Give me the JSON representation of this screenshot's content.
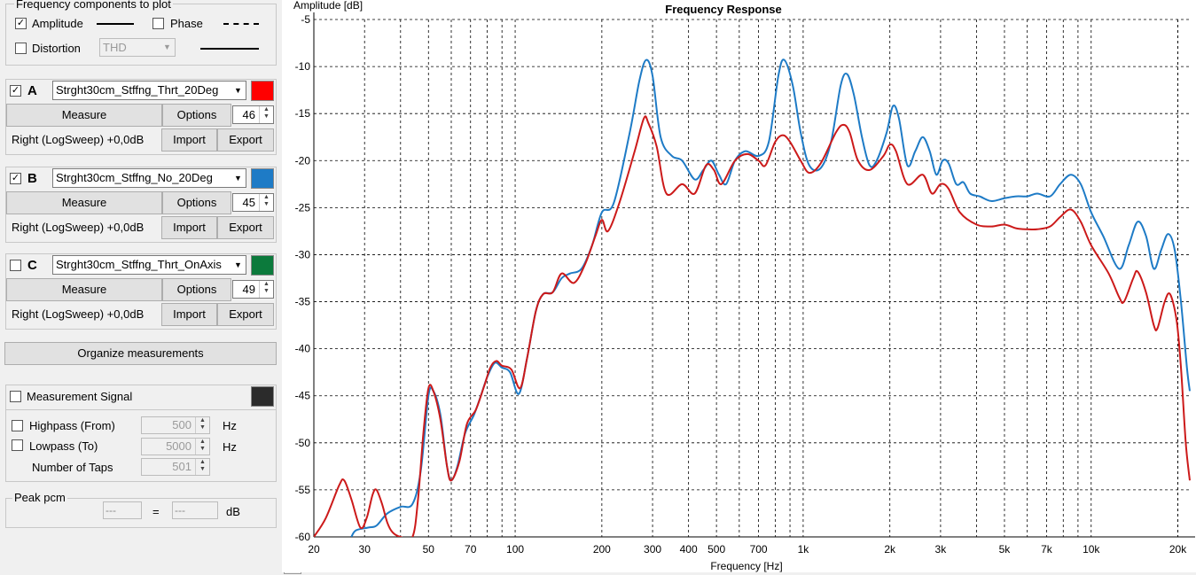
{
  "freq_components": {
    "title": "Frequency components to plot",
    "amplitude_label": "Amplitude",
    "amplitude_checked": true,
    "phase_label": "Phase",
    "phase_checked": false,
    "distortion_label": "Distortion",
    "distortion_checked": false,
    "distortion_select": "THD"
  },
  "measurements": [
    {
      "letter": "A",
      "checked": true,
      "name": "Strght30cm_Stffng_Thrt_20Deg",
      "color": "#ff0000",
      "measure_label": "Measure",
      "options_label": "Options",
      "number": "46",
      "info": "Right (LogSweep) +0,0dB",
      "import_label": "Import",
      "export_label": "Export"
    },
    {
      "letter": "B",
      "checked": true,
      "name": "Strght30cm_Stffng_No_20Deg",
      "color": "#1e7bc6",
      "measure_label": "Measure",
      "options_label": "Options",
      "number": "45",
      "info": "Right (LogSweep) +0,0dB",
      "import_label": "Import",
      "export_label": "Export"
    },
    {
      "letter": "C",
      "checked": false,
      "name": "Strght30cm_Stffng_Thrt_OnAxis",
      "color": "#0c7a3c",
      "measure_label": "Measure",
      "options_label": "Options",
      "number": "49",
      "info": "Right (LogSweep) +0,0dB",
      "import_label": "Import",
      "export_label": "Export"
    }
  ],
  "organize_label": "Organize measurements",
  "signal": {
    "label": "Measurement Signal",
    "checked": false,
    "color": "#2b2b2b",
    "highpass_label": "Highpass (From)",
    "highpass_value": "500",
    "lowpass_label": "Lowpass (To)",
    "lowpass_value": "5000",
    "hz": "Hz",
    "taps_label": "Number of Taps",
    "taps_value": "501"
  },
  "peak": {
    "title": "Peak pcm",
    "value1": "---",
    "equals": "=",
    "value2": "---",
    "unit": "dB"
  },
  "chart_data": {
    "type": "line",
    "title": "Frequency Response",
    "xlabel": "Frequency [Hz]",
    "ylabel": "Amplitude [dB]",
    "xscale": "log",
    "xlim": [
      20,
      22000
    ],
    "ylim": [
      -60,
      -5
    ],
    "yticks": [
      -5,
      -10,
      -15,
      -20,
      -25,
      -30,
      -35,
      -40,
      -45,
      -50,
      -55,
      -60
    ],
    "xtick_labels": [
      {
        "v": 20,
        "t": "20"
      },
      {
        "v": 30,
        "t": "30"
      },
      {
        "v": 50,
        "t": "50"
      },
      {
        "v": 70,
        "t": "70"
      },
      {
        "v": 100,
        "t": "100"
      },
      {
        "v": 200,
        "t": "200"
      },
      {
        "v": 300,
        "t": "300"
      },
      {
        "v": 400,
        "t": "400"
      },
      {
        "v": 500,
        "t": "500"
      },
      {
        "v": 700,
        "t": "700"
      },
      {
        "v": 1000,
        "t": "1k"
      },
      {
        "v": 2000,
        "t": "2k"
      },
      {
        "v": 3000,
        "t": "3k"
      },
      {
        "v": 5000,
        "t": "5k"
      },
      {
        "v": 7000,
        "t": "7k"
      },
      {
        "v": 10000,
        "t": "10k"
      },
      {
        "v": 20000,
        "t": "20k"
      }
    ],
    "grid": true,
    "series": [
      {
        "color": "#1e7bc6",
        "points": [
          [
            27,
            -60
          ],
          [
            28,
            -59.3
          ],
          [
            31,
            -59
          ],
          [
            33,
            -58.8
          ],
          [
            36,
            -57.5
          ],
          [
            40,
            -56.8
          ],
          [
            44,
            -56.5
          ],
          [
            47,
            -53
          ],
          [
            50,
            -45
          ],
          [
            52,
            -44.5
          ],
          [
            55,
            -47
          ],
          [
            58,
            -52.5
          ],
          [
            60,
            -54
          ],
          [
            63,
            -52.5
          ],
          [
            67,
            -49
          ],
          [
            72,
            -47
          ],
          [
            76,
            -45
          ],
          [
            80,
            -43
          ],
          [
            85,
            -41.5
          ],
          [
            90,
            -42
          ],
          [
            96,
            -42.5
          ],
          [
            103,
            -44.8
          ],
          [
            110,
            -41
          ],
          [
            118,
            -36
          ],
          [
            125,
            -34.2
          ],
          [
            135,
            -34
          ],
          [
            145,
            -32.5
          ],
          [
            155,
            -32
          ],
          [
            170,
            -31.5
          ],
          [
            185,
            -29
          ],
          [
            200,
            -25.5
          ],
          [
            220,
            -24.5
          ],
          [
            250,
            -17
          ],
          [
            270,
            -11.5
          ],
          [
            285,
            -9.3
          ],
          [
            300,
            -11
          ],
          [
            320,
            -17.5
          ],
          [
            350,
            -19.5
          ],
          [
            380,
            -20
          ],
          [
            420,
            -22
          ],
          [
            450,
            -21
          ],
          [
            480,
            -20
          ],
          [
            510,
            -21.5
          ],
          [
            540,
            -22.5
          ],
          [
            580,
            -20
          ],
          [
            630,
            -19
          ],
          [
            700,
            -19.5
          ],
          [
            760,
            -18
          ],
          [
            820,
            -11
          ],
          [
            860,
            -9.3
          ],
          [
            920,
            -12
          ],
          [
            980,
            -17
          ],
          [
            1050,
            -20.5
          ],
          [
            1150,
            -20.8
          ],
          [
            1250,
            -18
          ],
          [
            1350,
            -12
          ],
          [
            1420,
            -10.8
          ],
          [
            1500,
            -13
          ],
          [
            1600,
            -17.5
          ],
          [
            1700,
            -20.5
          ],
          [
            1800,
            -20
          ],
          [
            1950,
            -17
          ],
          [
            2050,
            -14.2
          ],
          [
            2150,
            -15.5
          ],
          [
            2300,
            -20.5
          ],
          [
            2450,
            -19
          ],
          [
            2600,
            -17.5
          ],
          [
            2750,
            -19
          ],
          [
            2900,
            -21.5
          ],
          [
            3050,
            -20
          ],
          [
            3200,
            -20.3
          ],
          [
            3400,
            -22.5
          ],
          [
            3600,
            -22.3
          ],
          [
            3800,
            -23.5
          ],
          [
            4100,
            -23.8
          ],
          [
            4500,
            -24.3
          ],
          [
            5000,
            -24
          ],
          [
            5500,
            -23.8
          ],
          [
            6000,
            -23.8
          ],
          [
            6500,
            -23.5
          ],
          [
            7200,
            -23.8
          ],
          [
            7800,
            -22.5
          ],
          [
            8500,
            -21.5
          ],
          [
            9200,
            -22.5
          ],
          [
            10000,
            -25.5
          ],
          [
            11000,
            -28
          ],
          [
            12500,
            -31.5
          ],
          [
            13500,
            -29
          ],
          [
            14500,
            -26.5
          ],
          [
            15500,
            -28
          ],
          [
            16500,
            -31.5
          ],
          [
            17500,
            -29.5
          ],
          [
            18500,
            -27.8
          ],
          [
            19500,
            -29.5
          ],
          [
            20500,
            -35
          ],
          [
            21500,
            -42
          ],
          [
            22000,
            -44.5
          ]
        ]
      },
      {
        "color": "#cc1a1a",
        "points": [
          [
            20,
            -60
          ],
          [
            22,
            -58
          ],
          [
            24.5,
            -54.5
          ],
          [
            25.5,
            -54
          ],
          [
            27,
            -56
          ],
          [
            29,
            -59
          ],
          [
            30.5,
            -58
          ],
          [
            32,
            -55.5
          ],
          [
            33,
            -55
          ],
          [
            34.5,
            -56.5
          ],
          [
            36,
            -58.5
          ],
          [
            37.5,
            -59.5
          ],
          [
            40,
            -60
          ],
          [
            44,
            -60
          ],
          [
            46,
            -56
          ],
          [
            48,
            -49
          ],
          [
            50,
            -44.2
          ],
          [
            52,
            -44.5
          ],
          [
            55,
            -47.5
          ],
          [
            58,
            -52.5
          ],
          [
            60,
            -54
          ],
          [
            64,
            -52
          ],
          [
            68,
            -48
          ],
          [
            73,
            -46.5
          ],
          [
            78,
            -44
          ],
          [
            82,
            -42
          ],
          [
            86,
            -41.3
          ],
          [
            90,
            -41.8
          ],
          [
            97,
            -42.2
          ],
          [
            104,
            -44.2
          ],
          [
            110,
            -41
          ],
          [
            118,
            -36
          ],
          [
            125,
            -34.2
          ],
          [
            135,
            -34
          ],
          [
            145,
            -32
          ],
          [
            160,
            -33
          ],
          [
            175,
            -31
          ],
          [
            190,
            -28
          ],
          [
            200,
            -26.3
          ],
          [
            210,
            -27.5
          ],
          [
            230,
            -24.5
          ],
          [
            260,
            -19
          ],
          [
            280,
            -15.5
          ],
          [
            290,
            -16
          ],
          [
            310,
            -18.5
          ],
          [
            335,
            -23.5
          ],
          [
            380,
            -22.5
          ],
          [
            420,
            -23.5
          ],
          [
            460,
            -20.5
          ],
          [
            490,
            -21
          ],
          [
            520,
            -22.5
          ],
          [
            580,
            -20
          ],
          [
            640,
            -19.3
          ],
          [
            700,
            -20
          ],
          [
            740,
            -20.5
          ],
          [
            800,
            -18
          ],
          [
            850,
            -17.3
          ],
          [
            900,
            -18
          ],
          [
            980,
            -20
          ],
          [
            1050,
            -21.3
          ],
          [
            1150,
            -20.3
          ],
          [
            1300,
            -17
          ],
          [
            1380,
            -16.2
          ],
          [
            1450,
            -17
          ],
          [
            1550,
            -20
          ],
          [
            1700,
            -21
          ],
          [
            1900,
            -19.5
          ],
          [
            2000,
            -18.3
          ],
          [
            2100,
            -19
          ],
          [
            2300,
            -22.5
          ],
          [
            2600,
            -21.5
          ],
          [
            2800,
            -23.5
          ],
          [
            3000,
            -22.5
          ],
          [
            3200,
            -23
          ],
          [
            3500,
            -25.5
          ],
          [
            4000,
            -26.8
          ],
          [
            4500,
            -27
          ],
          [
            5000,
            -26.8
          ],
          [
            5500,
            -27.2
          ],
          [
            6000,
            -27.3
          ],
          [
            6500,
            -27.3
          ],
          [
            7200,
            -27
          ],
          [
            7800,
            -26
          ],
          [
            8500,
            -25.2
          ],
          [
            9200,
            -26.5
          ],
          [
            10000,
            -29
          ],
          [
            11500,
            -32
          ],
          [
            12500,
            -34.5
          ],
          [
            13000,
            -35
          ],
          [
            14000,
            -32.5
          ],
          [
            14500,
            -31.8
          ],
          [
            15500,
            -34
          ],
          [
            16500,
            -37.5
          ],
          [
            17000,
            -37.8
          ],
          [
            18000,
            -35
          ],
          [
            18800,
            -34.2
          ],
          [
            19800,
            -37
          ],
          [
            20500,
            -42
          ],
          [
            21300,
            -50
          ],
          [
            22000,
            -54
          ]
        ]
      }
    ]
  }
}
